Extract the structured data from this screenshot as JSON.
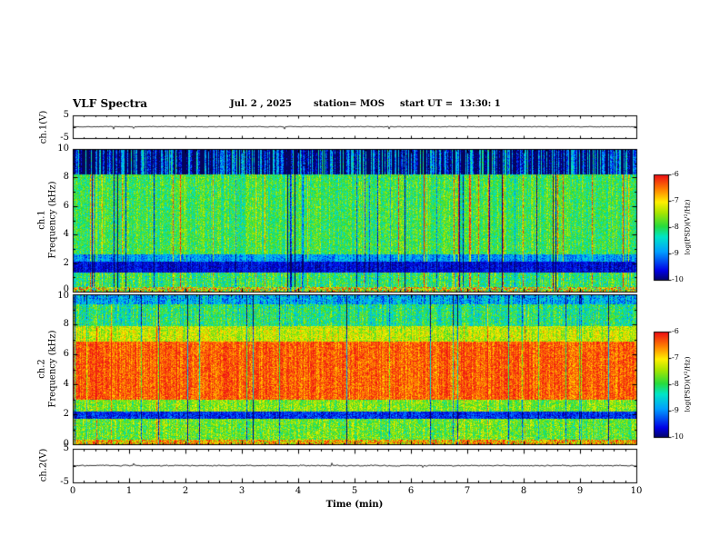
{
  "title": {
    "main": "VLF Spectra",
    "date": "Jul. 2 , 2025",
    "station": "station= MOS",
    "start_ut": "start UT =  13:30: 1"
  },
  "xaxis": {
    "label": "Time (min)",
    "range": [
      0,
      10
    ],
    "ticks": [
      0,
      1,
      2,
      3,
      4,
      5,
      6,
      7,
      8,
      9,
      10
    ]
  },
  "panels": {
    "wave1": {
      "ylabel": "ch.1(V)",
      "ylim": [
        -5,
        5
      ],
      "ytick_top": "5",
      "ytick_bottom": "-5"
    },
    "spec1": {
      "ylabel_line1": "ch.1",
      "ylabel_line2": "Frequency (kHz)",
      "ylim": [
        0,
        10
      ],
      "yticks": [
        0,
        2,
        4,
        6,
        8,
        10
      ]
    },
    "spec2": {
      "ylabel_line1": "ch.2",
      "ylabel_line2": "Frequency (kHz)",
      "ylim": [
        0,
        10
      ],
      "yticks": [
        0,
        2,
        4,
        6,
        8,
        10
      ]
    },
    "wave2": {
      "ylabel": "ch.2(V)",
      "ylim": [
        -5,
        5
      ],
      "ytick_top": "5",
      "ytick_bottom": "-5"
    }
  },
  "colorbar": {
    "label": "log(PSD)(V²/Hz)",
    "range": [
      -6,
      -10
    ],
    "ticks": [
      -6,
      -7,
      -8,
      -9,
      -10
    ]
  },
  "chart_data": [
    {
      "id": "ch1_voltage",
      "type": "line",
      "ylabel": "ch.1(V)",
      "xlabel": "Time (min)",
      "xlim": [
        0,
        10
      ],
      "ylim": [
        -5,
        5
      ],
      "summary": "Nearly flat voltage trace at 0 V with small noise over 10 minutes",
      "baseline": 0,
      "noise_amp": 0.18,
      "spike_prob": 0.01,
      "spike_amp": 1.0,
      "seed": 7
    },
    {
      "id": "ch1_spectrogram",
      "type": "heatmap",
      "ylabel": "ch.1 Frequency (kHz)",
      "xlabel": "Time (min)",
      "xlim": [
        0,
        10
      ],
      "ylim": [
        0,
        10
      ],
      "zlim": [
        -10,
        -6
      ],
      "zlabel": "log(PSD)(V²/Hz)",
      "summary": "Broadband green (~-8) emission 2.6-8.3 kHz with yellow/dark vertical sferic streaks, dark band 1.4-2.1 kHz, mostly black above 8.3 kHz with colored striations",
      "seed": 42,
      "streaks": {
        "bright_prob": 0.05,
        "bright_amp": 1.3,
        "dark_prob": 0.05,
        "dark_amp": 1.5
      },
      "bands": [
        {
          "f0": 0.0,
          "f1": 0.35,
          "psd": -7.2,
          "var": 1.3,
          "colvar": 0.3,
          "streak": false
        },
        {
          "f0": 0.35,
          "f1": 1.35,
          "psd": -8.0,
          "var": 0.6,
          "colvar": 0.4,
          "streak": true
        },
        {
          "f0": 1.35,
          "f1": 2.1,
          "psd": -9.6,
          "var": 0.3,
          "colvar": 0.2,
          "streak": false
        },
        {
          "f0": 2.1,
          "f1": 2.6,
          "psd": -8.9,
          "var": 0.45,
          "colvar": 0.3,
          "streak": true
        },
        {
          "f0": 2.6,
          "f1": 8.3,
          "psd": -7.9,
          "var": 0.5,
          "colvar": 0.35,
          "streak": true
        },
        {
          "f0": 8.3,
          "f1": 10.0,
          "psd": -9.7,
          "var": 0.5,
          "colvar": 1.5,
          "streak": false
        }
      ]
    },
    {
      "id": "ch2_spectrogram",
      "type": "heatmap",
      "ylabel": "ch.2 Frequency (kHz)",
      "xlabel": "Time (min)",
      "xlim": [
        0,
        10
      ],
      "ylim": [
        0,
        10
      ],
      "zlim": [
        -10,
        -6
      ],
      "zlabel": "log(PSD)(V²/Hz)",
      "summary": "Intense red band (~-6.3) 3-7 kHz, green/cyan 0.3-1.7 and above 7.9 kHz, dark band 1.7-2.2 kHz, occasional dark-blue vertical streaks",
      "seed": 77,
      "streaks": {
        "bright_prob": 0.015,
        "bright_amp": 0.8,
        "dark_prob": 0.04,
        "dark_amp": 1.6
      },
      "bands": [
        {
          "f0": 0.0,
          "f1": 0.3,
          "psd": -6.8,
          "var": 1.0,
          "colvar": 0.3,
          "streak": true
        },
        {
          "f0": 0.3,
          "f1": 1.7,
          "psd": -7.7,
          "var": 0.55,
          "colvar": 0.3,
          "streak": true
        },
        {
          "f0": 1.7,
          "f1": 2.2,
          "psd": -9.4,
          "var": 0.4,
          "colvar": 0.2,
          "streak": false
        },
        {
          "f0": 2.2,
          "f1": 3.0,
          "psd": -7.6,
          "var": 0.5,
          "colvar": 0.3,
          "streak": true
        },
        {
          "f0": 3.0,
          "f1": 6.9,
          "psd": -6.35,
          "var": 0.4,
          "colvar": 0.25,
          "streak": true
        },
        {
          "f0": 6.9,
          "f1": 7.9,
          "psd": -7.3,
          "var": 0.5,
          "colvar": 0.3,
          "streak": true
        },
        {
          "f0": 7.9,
          "f1": 9.4,
          "psd": -8.1,
          "var": 0.6,
          "colvar": 0.4,
          "streak": true
        },
        {
          "f0": 9.4,
          "f1": 10.0,
          "psd": -8.8,
          "var": 0.6,
          "colvar": 0.4,
          "streak": false
        }
      ]
    },
    {
      "id": "ch2_voltage",
      "type": "line",
      "ylabel": "ch.2(V)",
      "xlabel": "Time (min)",
      "xlim": [
        0,
        10
      ],
      "ylim": [
        -5,
        5
      ],
      "summary": "Nearly flat voltage trace at 0 V with small noise over 10 minutes",
      "baseline": 0,
      "noise_amp": 0.18,
      "spike_prob": 0.008,
      "spike_amp": 0.9,
      "seed": 9
    }
  ]
}
